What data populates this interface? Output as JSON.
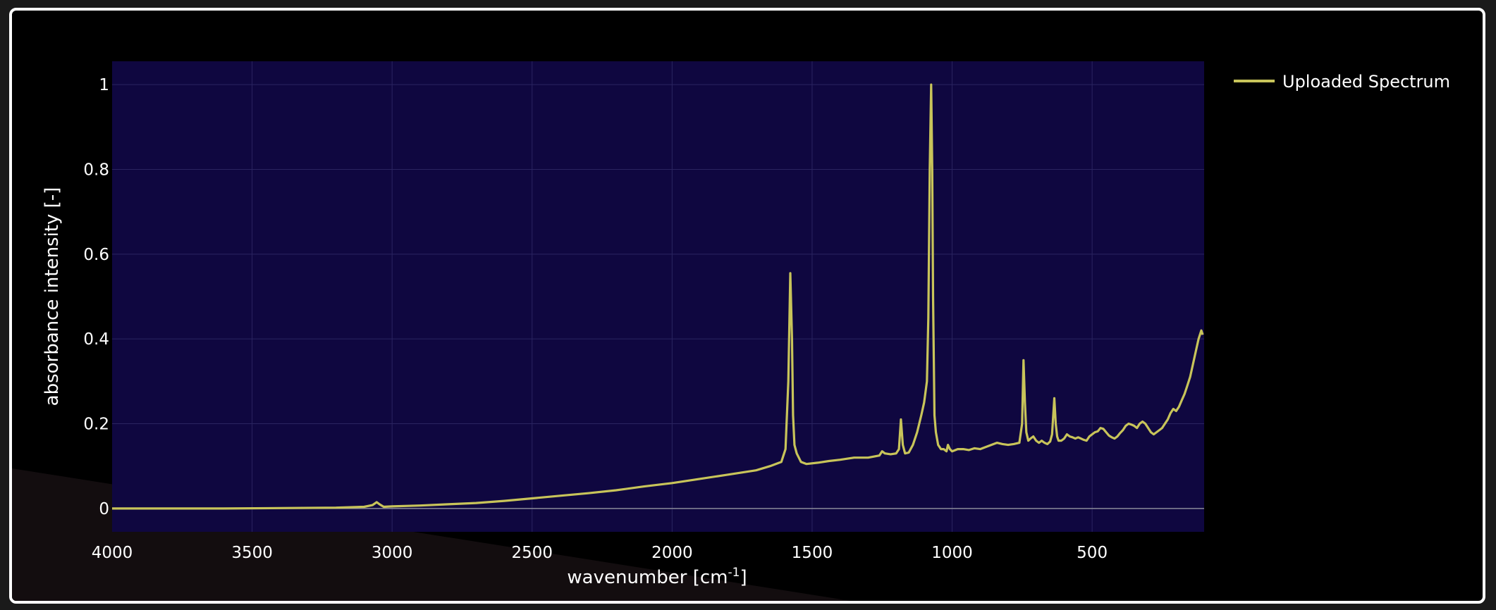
{
  "chart_data": {
    "type": "line",
    "title": "",
    "xlabel": "wavenumber [cm",
    "xlabel_sup": "-1",
    "xlabel_close": "]",
    "ylabel": "absorbance intensity [-]",
    "xlim": [
      4000,
      100
    ],
    "ylim": [
      -0.055,
      1.055
    ],
    "x_reversed": true,
    "x_ticks": [
      4000,
      3500,
      3000,
      2500,
      2000,
      1500,
      1000,
      500
    ],
    "x_tick_labels": [
      "4000",
      "3500",
      "3000",
      "2500",
      "2000",
      "1500",
      "1000",
      "500"
    ],
    "y_ticks": [
      0,
      0.2,
      0.4,
      0.6,
      0.8,
      1
    ],
    "y_tick_labels": [
      "0",
      "0.2",
      "0.4",
      "0.6",
      "0.8",
      "1"
    ],
    "grid": true,
    "legend_position": "top-right, outside plot",
    "series": [
      {
        "name": "Uploaded Spectrum",
        "color": "#c8c45a",
        "x": [
          4000,
          3800,
          3600,
          3400,
          3200,
          3100,
          3070,
          3055,
          3045,
          3030,
          3000,
          2900,
          2800,
          2700,
          2600,
          2500,
          2400,
          2300,
          2200,
          2100,
          2000,
          1900,
          1800,
          1700,
          1650,
          1610,
          1595,
          1585,
          1578,
          1572,
          1568,
          1563,
          1555,
          1540,
          1520,
          1480,
          1440,
          1400,
          1350,
          1300,
          1260,
          1250,
          1240,
          1220,
          1200,
          1190,
          1183,
          1176,
          1168,
          1155,
          1140,
          1125,
          1110,
          1100,
          1090,
          1085,
          1080,
          1075,
          1071,
          1068,
          1063,
          1058,
          1050,
          1040,
          1030,
          1020,
          1015,
          1008,
          1000,
          980,
          960,
          940,
          920,
          900,
          880,
          860,
          840,
          820,
          800,
          780,
          760,
          750,
          745,
          740,
          735,
          728,
          720,
          710,
          700,
          690,
          680,
          670,
          660,
          650,
          643,
          635,
          630,
          625,
          620,
          610,
          600,
          590,
          580,
          570,
          560,
          550,
          540,
          530,
          520,
          510,
          500,
          490,
          480,
          470,
          460,
          450,
          440,
          430,
          420,
          410,
          400,
          390,
          380,
          370,
          360,
          350,
          340,
          330,
          320,
          310,
          300,
          290,
          280,
          270,
          260,
          250,
          240,
          230,
          220,
          210,
          200,
          190,
          180,
          170,
          160,
          150,
          140,
          130,
          120,
          110,
          105
        ],
        "y": [
          0.0,
          0.0,
          0.0,
          0.001,
          0.002,
          0.004,
          0.008,
          0.015,
          0.01,
          0.004,
          0.005,
          0.007,
          0.01,
          0.013,
          0.018,
          0.024,
          0.03,
          0.036,
          0.043,
          0.052,
          0.06,
          0.07,
          0.08,
          0.09,
          0.1,
          0.11,
          0.14,
          0.3,
          0.555,
          0.4,
          0.22,
          0.15,
          0.13,
          0.11,
          0.105,
          0.108,
          0.112,
          0.115,
          0.12,
          0.12,
          0.125,
          0.135,
          0.13,
          0.128,
          0.13,
          0.14,
          0.21,
          0.15,
          0.13,
          0.132,
          0.15,
          0.18,
          0.22,
          0.25,
          0.3,
          0.45,
          0.8,
          1.0,
          0.8,
          0.5,
          0.22,
          0.18,
          0.15,
          0.14,
          0.14,
          0.135,
          0.15,
          0.14,
          0.135,
          0.14,
          0.14,
          0.138,
          0.142,
          0.14,
          0.145,
          0.15,
          0.155,
          0.152,
          0.15,
          0.152,
          0.155,
          0.2,
          0.35,
          0.25,
          0.18,
          0.16,
          0.165,
          0.17,
          0.16,
          0.155,
          0.16,
          0.155,
          0.152,
          0.158,
          0.175,
          0.26,
          0.2,
          0.17,
          0.16,
          0.16,
          0.165,
          0.175,
          0.17,
          0.168,
          0.165,
          0.168,
          0.165,
          0.162,
          0.16,
          0.17,
          0.175,
          0.18,
          0.182,
          0.19,
          0.188,
          0.18,
          0.172,
          0.168,
          0.165,
          0.17,
          0.178,
          0.185,
          0.195,
          0.2,
          0.198,
          0.195,
          0.19,
          0.2,
          0.205,
          0.2,
          0.19,
          0.18,
          0.175,
          0.18,
          0.185,
          0.19,
          0.2,
          0.21,
          0.225,
          0.235,
          0.23,
          0.24,
          0.255,
          0.27,
          0.29,
          0.31,
          0.34,
          0.37,
          0.4,
          0.42,
          0.41
        ]
      }
    ]
  },
  "legend": {
    "label": "Uploaded Spectrum"
  },
  "colors": {
    "plot_background": "#0f0740",
    "page_background": "#000000",
    "frame_border": "#ffffff",
    "line": "#c8c45a"
  }
}
